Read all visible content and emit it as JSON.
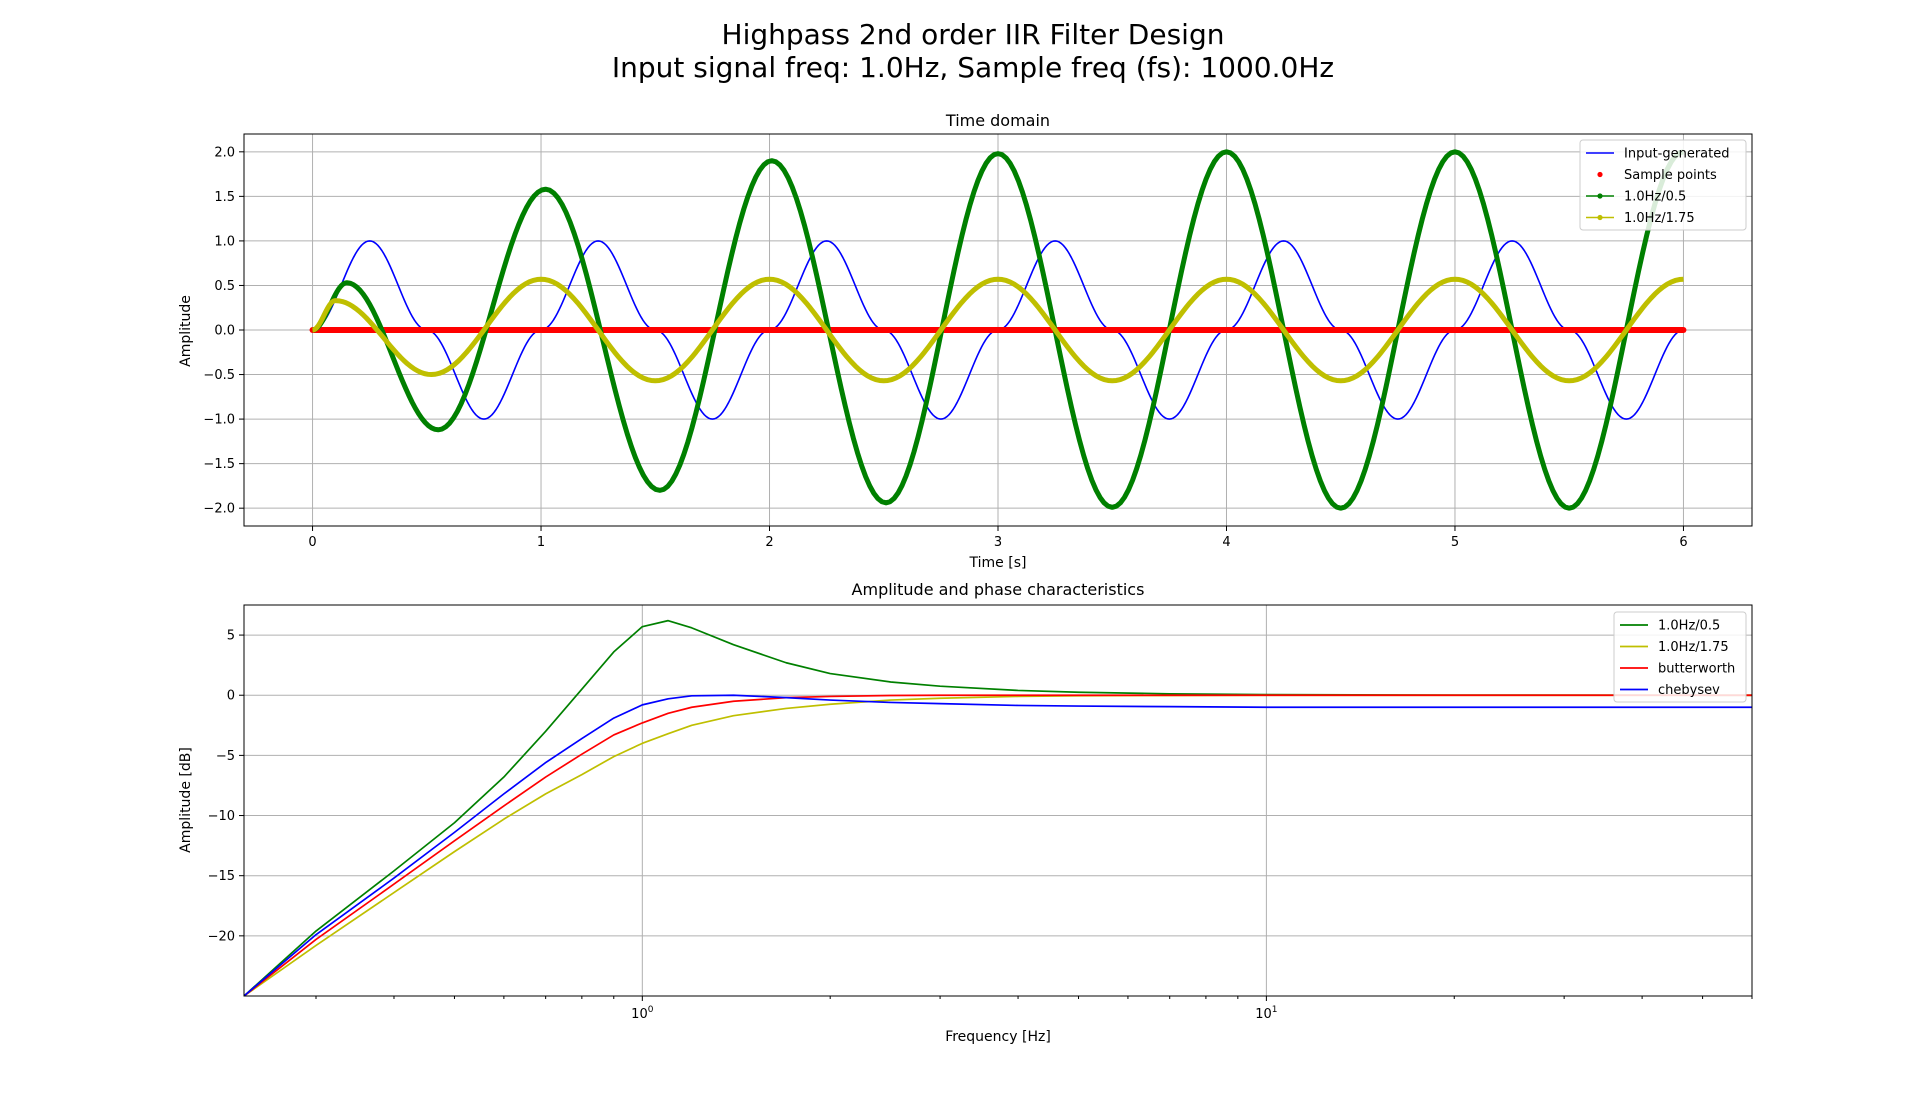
{
  "figure": {
    "title_line1": "Highpass 2nd order IIR Filter Design",
    "title_line2": "Input signal freq: 1.0Hz, Sample freq (fs): 1000.0Hz"
  },
  "chart_data": [
    {
      "type": "line",
      "title": "Time domain",
      "xlabel": "Time [s]",
      "ylabel": "Amplitude",
      "xlim": [
        -0.3,
        6.3
      ],
      "ylim": [
        -2.2,
        2.2
      ],
      "xscale": "linear",
      "grid": true,
      "legend_position": "top-right",
      "xticks": [
        0,
        1,
        2,
        3,
        4,
        5,
        6
      ],
      "xtick_labels": [
        "0",
        "1",
        "2",
        "3",
        "4",
        "5",
        "6"
      ],
      "yticks": [
        -2.0,
        -1.5,
        -1.0,
        -0.5,
        0.0,
        0.5,
        1.0,
        1.5,
        2.0
      ],
      "ytick_labels": [
        "−2.0",
        "−1.5",
        "−1.0",
        "−0.5",
        "0.0",
        "0.5",
        "1.0",
        "1.5",
        "2.0"
      ],
      "series": [
        {
          "name": "Input-generated",
          "color": "#0000ff",
          "style": "thin-line",
          "x": [
            0,
            0.25,
            0.5,
            0.75,
            1,
            1.25,
            1.5,
            1.75,
            2,
            2.25,
            2.5,
            2.75,
            3,
            3.25,
            3.5,
            3.75,
            4,
            4.25,
            4.5,
            4.75,
            5,
            5.25,
            5.5,
            5.75,
            6
          ],
          "y": [
            0,
            1,
            0,
            -1,
            0,
            1,
            0,
            -1,
            0,
            1,
            0,
            -1,
            0,
            1,
            0,
            -1,
            0,
            1,
            0,
            -1,
            0,
            1,
            0,
            -1,
            0
          ]
        },
        {
          "name": "Sample points",
          "color": "#ff0000",
          "style": "dots",
          "x": [
            0,
            6
          ],
          "y": [
            0,
            0
          ]
        },
        {
          "name": "1.0Hz/0.5",
          "color": "#008000",
          "style": "thick-line",
          "x": [
            0,
            0.15,
            0.55,
            1.02,
            1.52,
            2.01,
            2.51,
            3.0,
            3.5,
            4.0,
            4.5,
            5.0,
            5.5,
            6.0
          ],
          "y": [
            0,
            0.53,
            -1.12,
            1.58,
            -1.8,
            1.9,
            -1.94,
            1.98,
            -1.99,
            2.0,
            -2.0,
            2.0,
            -2.0,
            2.0
          ]
        },
        {
          "name": "1.0Hz/1.75",
          "color": "#bfbf00",
          "style": "thick-line",
          "x": [
            0,
            0.1,
            0.52,
            1.0,
            1.5,
            2.0,
            2.5,
            3.0,
            3.5,
            4.0,
            4.5,
            5.0,
            5.5,
            6.0
          ],
          "y": [
            0,
            0.33,
            -0.5,
            0.57,
            -0.57,
            0.57,
            -0.57,
            0.57,
            -0.57,
            0.57,
            -0.57,
            0.57,
            -0.57,
            0.57
          ]
        }
      ]
    },
    {
      "type": "line",
      "title": "Amplitude and phase characteristics",
      "xlabel": "Frequency [Hz]",
      "ylabel": "Amplitude [dB]",
      "xscale": "log",
      "xlim": [
        0.23,
        60
      ],
      "ylim": [
        -25,
        7.5
      ],
      "grid": true,
      "legend_position": "top-right",
      "xticks": [
        1,
        10
      ],
      "xtick_labels": [
        {
          "base": "10",
          "exp": "0"
        },
        {
          "base": "10",
          "exp": "1"
        }
      ],
      "yticks": [
        -20,
        -15,
        -10,
        -5,
        0,
        5
      ],
      "ytick_labels": [
        "−20",
        "−15",
        "−10",
        "−5",
        "0",
        "5"
      ],
      "x": [
        0.23,
        0.3,
        0.4,
        0.5,
        0.6,
        0.7,
        0.8,
        0.9,
        1.0,
        1.1,
        1.2,
        1.4,
        1.7,
        2.0,
        2.5,
        3.0,
        4.0,
        5.0,
        7.0,
        10.0,
        20.0,
        60.0
      ],
      "series": [
        {
          "name": "1.0Hz/0.5",
          "color": "#008000",
          "values": [
            -25,
            -19.6,
            -14.6,
            -10.6,
            -6.8,
            -3.0,
            0.5,
            3.6,
            5.7,
            6.2,
            5.6,
            4.2,
            2.7,
            1.8,
            1.1,
            0.75,
            0.4,
            0.25,
            0.12,
            0.05,
            0.01,
            0.0
          ]
        },
        {
          "name": "1.0Hz/1.75",
          "color": "#bfbf00",
          "values": [
            -25,
            -20.8,
            -16.4,
            -13.0,
            -10.3,
            -8.2,
            -6.6,
            -5.1,
            -4.0,
            -3.2,
            -2.5,
            -1.7,
            -1.1,
            -0.75,
            -0.4,
            -0.25,
            -0.1,
            -0.05,
            -0.02,
            0.0,
            0.0,
            0.0
          ]
        },
        {
          "name": "butterworth",
          "color": "#ff0000",
          "values": [
            -25,
            -20.3,
            -15.7,
            -12.1,
            -9.2,
            -6.8,
            -4.9,
            -3.3,
            -2.3,
            -1.5,
            -1.0,
            -0.5,
            -0.2,
            -0.1,
            -0.02,
            0.0,
            0.0,
            0.0,
            0.0,
            0.0,
            0.0,
            0.0
          ]
        },
        {
          "name": "chebysev",
          "color": "#0000ff",
          "values": [
            -25,
            -19.9,
            -15.2,
            -11.4,
            -8.2,
            -5.6,
            -3.6,
            -1.9,
            -0.8,
            -0.3,
            -0.05,
            0.0,
            -0.2,
            -0.4,
            -0.6,
            -0.7,
            -0.85,
            -0.9,
            -0.95,
            -1.0,
            -1.0,
            -1.0
          ]
        }
      ]
    }
  ]
}
